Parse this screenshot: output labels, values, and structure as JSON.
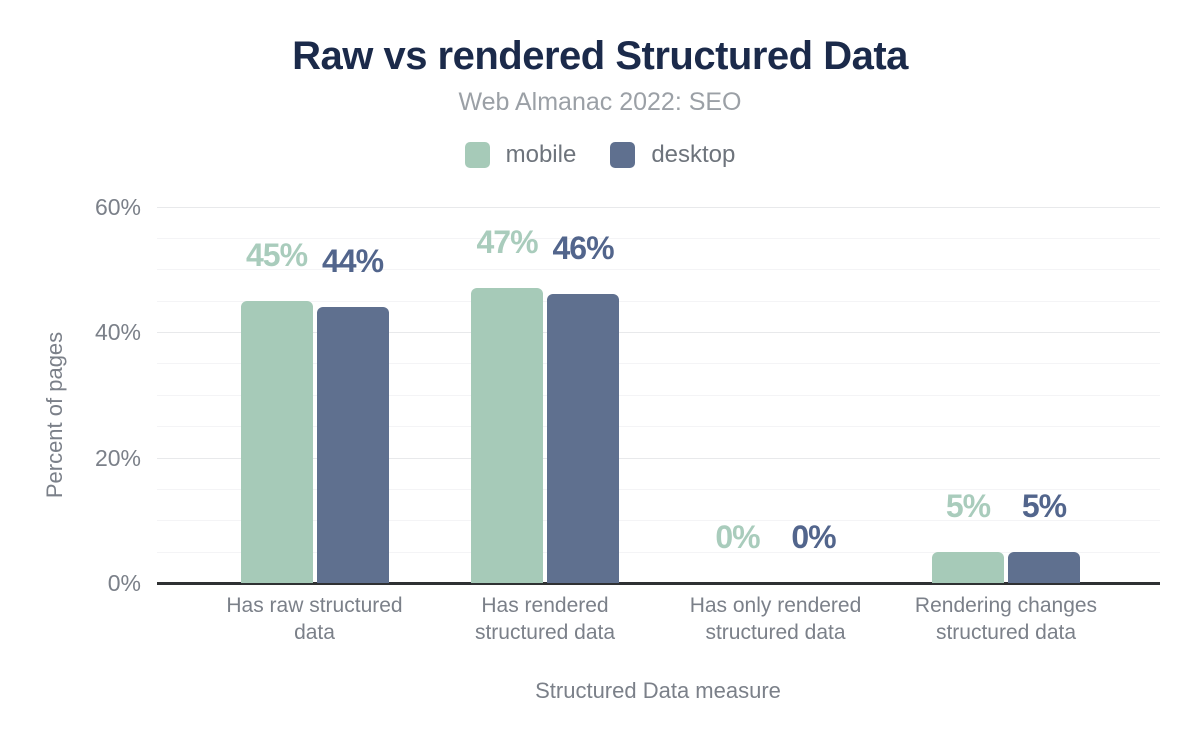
{
  "chart_data": {
    "type": "bar",
    "title": "Raw vs rendered Structured Data",
    "subtitle": "Web Almanac 2022: SEO",
    "xlabel": "Structured Data measure",
    "ylabel": "Percent of pages",
    "categories": [
      {
        "label": "Has raw structured data",
        "lines": [
          "Has raw structured",
          "data"
        ]
      },
      {
        "label": "Has rendered structured data",
        "lines": [
          "Has rendered",
          "structured data"
        ]
      },
      {
        "label": "Has only rendered structured data",
        "lines": [
          "Has only rendered",
          "structured data"
        ]
      },
      {
        "label": "Rendering changes structured data",
        "lines": [
          "Rendering changes",
          "structured data"
        ]
      }
    ],
    "series": [
      {
        "name": "mobile",
        "color": "#a6cab8",
        "label_color": "#a9ccbc",
        "values": [
          45,
          47,
          0,
          5
        ],
        "display": [
          "45%",
          "47%",
          "0%",
          "5%"
        ]
      },
      {
        "name": "desktop",
        "color": "#5f708f",
        "label_color": "#52658c",
        "values": [
          44,
          46,
          0,
          5
        ],
        "display": [
          "44%",
          "46%",
          "0%",
          "5%"
        ]
      }
    ],
    "ylim": [
      0,
      60
    ],
    "yticks": [
      {
        "value": 0,
        "label": "0%"
      },
      {
        "value": 20,
        "label": "20%"
      },
      {
        "value": 40,
        "label": "40%"
      },
      {
        "value": 60,
        "label": "60%"
      }
    ],
    "minor_grid_step": 5,
    "grid": true,
    "legend_position": "top",
    "colors": {
      "title": "#1b2a4a",
      "subtitle": "#9ba0a6",
      "legend_text": "#6e747c",
      "axis_text": "#7b8089",
      "grid_major": "#e8e9eb",
      "grid_minor": "#f4f4f6",
      "axis_line": "#2f3133"
    }
  }
}
